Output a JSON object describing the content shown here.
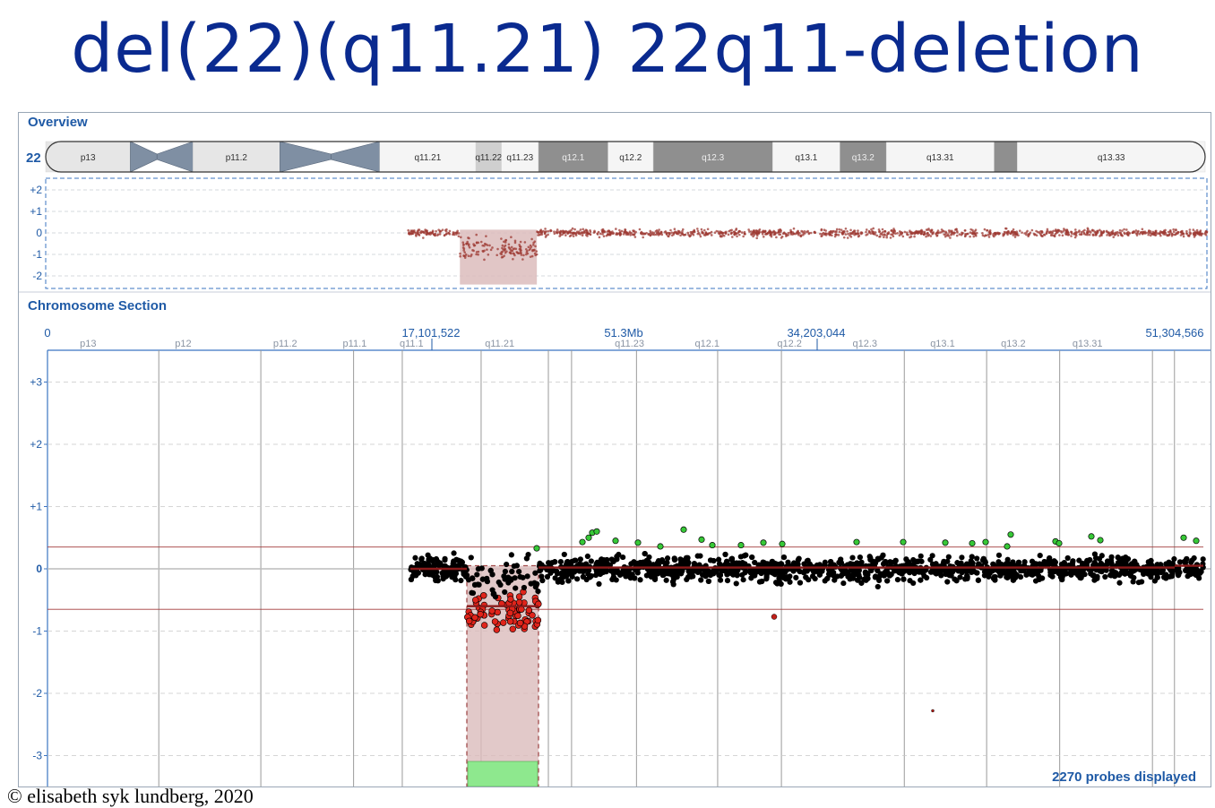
{
  "title": "del(22)(q11.21) 22q11-deletion",
  "overview": {
    "label": "Overview",
    "chromosome": "22",
    "bands": [
      {
        "name": "p13",
        "start": 0,
        "end": 7.3,
        "kind": "stalk"
      },
      {
        "name": "",
        "start": 7.3,
        "end": 9.6,
        "kind": "cen"
      },
      {
        "name": "",
        "start": 9.6,
        "end": 12.7,
        "kind": "cen"
      },
      {
        "name": "p11.2",
        "start": 12.7,
        "end": 20.2,
        "kind": "stalk"
      },
      {
        "name": "",
        "start": 20.2,
        "end": 24.6,
        "kind": "cen"
      },
      {
        "name": "",
        "start": 24.6,
        "end": 28.8,
        "kind": "cen"
      },
      {
        "name": "q11.21",
        "start": 28.8,
        "end": 37.1,
        "kind": "light"
      },
      {
        "name": "q11.22",
        "start": 37.1,
        "end": 39.3,
        "kind": "mid"
      },
      {
        "name": "q11.23",
        "start": 39.3,
        "end": 42.5,
        "kind": "light"
      },
      {
        "name": "q12.1",
        "start": 42.5,
        "end": 48.5,
        "kind": "dark"
      },
      {
        "name": "q12.2",
        "start": 48.5,
        "end": 52.4,
        "kind": "light"
      },
      {
        "name": "q12.3",
        "start": 52.4,
        "end": 62.7,
        "kind": "dark"
      },
      {
        "name": "q13.1",
        "start": 62.7,
        "end": 68.5,
        "kind": "light"
      },
      {
        "name": "q13.2",
        "start": 68.5,
        "end": 72.5,
        "kind": "dark"
      },
      {
        "name": "q13.31",
        "start": 72.5,
        "end": 81.8,
        "kind": "light"
      },
      {
        "name": "",
        "start": 81.8,
        "end": 83.8,
        "kind": "dark"
      },
      {
        "name": "q13.33",
        "start": 83.8,
        "end": 100,
        "kind": "light"
      }
    ],
    "yticks": [
      "+2",
      "+1",
      "0",
      "-1",
      "-2"
    ]
  },
  "section": {
    "label": "Chromosome Section",
    "positions": [
      "0",
      "17,101,522",
      "51.3Mb",
      "34,203,044",
      "51,304,566"
    ],
    "band_labels": [
      {
        "name": "p13",
        "pos": 3.5
      },
      {
        "name": "p12",
        "pos": 11.7
      },
      {
        "name": "p11.2",
        "pos": 20.5
      },
      {
        "name": "p11.1",
        "pos": 26.5
      },
      {
        "name": "q11.1",
        "pos": 31.4
      },
      {
        "name": "q11.21",
        "pos": 39.0
      },
      {
        "name": "q11.23",
        "pos": 50.2
      },
      {
        "name": "q12.1",
        "pos": 56.9
      },
      {
        "name": "q12.2",
        "pos": 64.0
      },
      {
        "name": "q12.3",
        "pos": 70.5
      },
      {
        "name": "q13.1",
        "pos": 77.2
      },
      {
        "name": "q13.2",
        "pos": 83.3
      },
      {
        "name": "q13.31",
        "pos": 89.7
      }
    ],
    "yticks": [
      "+3",
      "+2",
      "+1",
      "0",
      "-1",
      "-2",
      "-3"
    ],
    "probes_label": "2270 probes displayed"
  },
  "chart_data": {
    "type": "scatter",
    "title": "del(22)(q11.21) 22q11-deletion",
    "xlabel": "",
    "ylabel": "",
    "xlim": [
      0,
      51304566
    ],
    "ylim": [
      -3.4,
      3.6
    ],
    "probe_count": 2270,
    "thresholds": [
      0.35,
      -0.65
    ],
    "deletion": {
      "start": 18300000,
      "end": 21700000,
      "mean_log2_ratio": -0.75
    },
    "segments": [
      {
        "start": 16000000,
        "end": 18300000,
        "value": 0.0
      },
      {
        "start": 18300000,
        "end": 21700000,
        "value": -0.6
      },
      {
        "start": 21700000,
        "end": 51304566,
        "value": 0.02
      }
    ],
    "series": [
      {
        "name": "",
        "color": "#000000"
      },
      {
        "name": "",
        "color": "#e0241b"
      },
      {
        "name": "",
        "color": "#37c837"
      }
    ],
    "grid": true
  },
  "copyright": "© elisabeth syk lundberg, 2020",
  "colors": {
    "title": "#0a2a8f",
    "axis": "#1f5aa6",
    "overview_points": "#9e3a33",
    "deletion_fill": "#dcbcbc",
    "gain_marker": "#8ee88e"
  }
}
